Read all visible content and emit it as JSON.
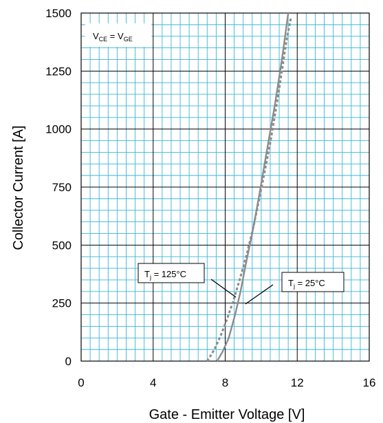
{
  "chart_data": {
    "type": "line",
    "title": "",
    "xlabel": "Gate - Emitter Voltage [V]",
    "ylabel": "Collector Current [A]",
    "xlim": [
      0,
      16
    ],
    "ylim": [
      0,
      1500
    ],
    "x_ticks": [
      0,
      4,
      8,
      12,
      16
    ],
    "y_ticks": [
      0,
      250,
      500,
      750,
      1000,
      1250,
      1500
    ],
    "x_minor_step": 0.5,
    "y_minor_step": 50,
    "grid": true,
    "colors": {
      "grid_minor": "#39b5d6",
      "grid_major": "#000000",
      "curve": "#8c8c8c"
    },
    "condition": {
      "main": "V",
      "sub1": "CE",
      "mid": " = V",
      "sub2": "GE"
    },
    "series": [
      {
        "name": "Tj = 25°C",
        "style": "solid",
        "x": [
          7.55,
          7.85,
          8.2,
          8.55,
          8.85,
          9.15,
          9.5,
          9.9,
          10.3,
          10.75,
          11.15,
          11.5
        ],
        "y": [
          0,
          40,
          100,
          200,
          300,
          420,
          550,
          720,
          900,
          1100,
          1300,
          1500
        ]
      },
      {
        "name": "Tj = 125°C",
        "style": "dashed",
        "x": [
          7.0,
          7.4,
          7.75,
          8.1,
          8.45,
          8.8,
          9.2,
          9.6,
          10.05,
          10.5,
          10.95,
          11.4,
          11.65
        ],
        "y": [
          0,
          50,
          110,
          180,
          260,
          350,
          460,
          590,
          760,
          940,
          1150,
          1380,
          1480
        ]
      }
    ],
    "annotations": [
      {
        "label_main": "T",
        "label_sub": "j",
        "label_rest": " = 125°C"
      },
      {
        "label_main": "T",
        "label_sub": "j",
        "label_rest": " = 25°C"
      }
    ]
  }
}
